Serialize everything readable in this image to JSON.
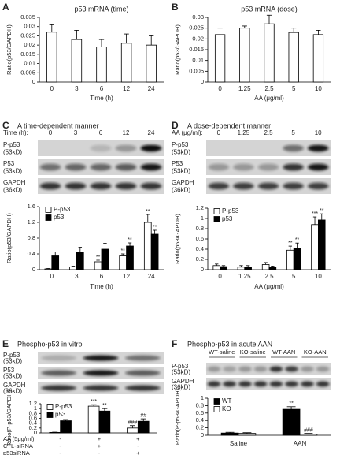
{
  "chart_data": [
    {
      "type": "bar",
      "panel": "A",
      "title": "p53 mRNA (time)",
      "xlabel": "Time (h)",
      "ylabel": "Ratio(p53/GAPDH)",
      "categories": [
        "0",
        "3",
        "6",
        "12",
        "24"
      ],
      "ylim": [
        0,
        0.035
      ],
      "yticks": [
        0,
        0.005,
        0.01,
        0.015,
        0.02,
        0.025,
        0.03,
        0.035
      ],
      "series": [
        {
          "color": "#ffffff",
          "values": [
            0.027,
            0.023,
            0.019,
            0.021,
            0.02
          ],
          "errors": [
            0.004,
            0.005,
            0.004,
            0.005,
            0.005
          ]
        }
      ]
    },
    {
      "type": "bar",
      "panel": "B",
      "title": "p53 mRNA (dose)",
      "xlabel": "AA (μg/ml)",
      "ylabel": "Ratio(p53/GAPDH)",
      "categories": [
        "0",
        "1.25",
        "2.5",
        "5",
        "10"
      ],
      "ylim": [
        0,
        0.03
      ],
      "yticks": [
        0,
        0.005,
        0.01,
        0.015,
        0.02,
        0.025,
        0.03
      ],
      "series": [
        {
          "color": "#ffffff",
          "values": [
            0.022,
            0.025,
            0.027,
            0.023,
            0.022
          ],
          "errors": [
            0.003,
            0.001,
            0.004,
            0.002,
            0.002
          ]
        }
      ]
    },
    {
      "type": "bar",
      "panel": "C",
      "title": "A time-dependent manner",
      "xlabel": "Time (h)",
      "ylabel": "Ratio(p53/GAPDH)",
      "blot": {
        "lane_label": "Time (h):",
        "lanes": [
          "0",
          "3",
          "6",
          "12",
          "24"
        ],
        "rows": [
          {
            "name": "P-p53",
            "size": "(53kD)"
          },
          {
            "name": "P53",
            "size": "(53kD)"
          },
          {
            "name": "GAPDH",
            "size": "(36kD)"
          }
        ]
      },
      "categories": [
        "0",
        "3",
        "6",
        "12",
        "24"
      ],
      "ylim": [
        0,
        1.6
      ],
      "yticks": [
        0,
        0.4,
        0.8,
        1.2,
        1.6
      ],
      "series": [
        {
          "name": "P-p53",
          "color": "#ffffff",
          "values": [
            0.02,
            0.07,
            0.2,
            0.35,
            1.2
          ],
          "errors": [
            0.01,
            0.02,
            0.04,
            0.05,
            0.2
          ],
          "labels": [
            null,
            null,
            "**",
            "**",
            "**"
          ]
        },
        {
          "name": "p53",
          "color": "#000000",
          "values": [
            0.35,
            0.45,
            0.52,
            0.6,
            0.9
          ],
          "errors": [
            0.1,
            0.12,
            0.15,
            0.08,
            0.1
          ],
          "labels": [
            null,
            null,
            null,
            "**",
            "**"
          ]
        }
      ]
    },
    {
      "type": "bar",
      "panel": "D",
      "title": "A dose-dependent manner",
      "xlabel": "AA (μg/ml)",
      "ylabel": "Ratio(p53/GAPDH)",
      "blot": {
        "lane_label": "AA (μg/ml):",
        "lanes": [
          "0",
          "1.25",
          "2.5",
          "5",
          "10"
        ],
        "rows": [
          {
            "name": "P-p53",
            "size": "(53kD)"
          },
          {
            "name": "P53",
            "size": "(53kD)"
          },
          {
            "name": "GAPDH",
            "size": "(36kD)"
          }
        ]
      },
      "categories": [
        "0",
        "1.25",
        "2.5",
        "5",
        "10"
      ],
      "ylim": [
        0,
        1.2
      ],
      "yticks": [
        0,
        0.2,
        0.4,
        0.6,
        0.8,
        1,
        1.2
      ],
      "series": [
        {
          "name": "P-p53",
          "color": "#ffffff",
          "values": [
            0.08,
            0.05,
            0.1,
            0.38,
            0.88
          ],
          "errors": [
            0.03,
            0.03,
            0.04,
            0.08,
            0.15
          ],
          "labels": [
            null,
            null,
            null,
            "**",
            "***"
          ]
        },
        {
          "name": "p53",
          "color": "#000000",
          "values": [
            0.06,
            0.05,
            0.05,
            0.42,
            0.97
          ],
          "errors": [
            0.02,
            0.03,
            0.02,
            0.1,
            0.12
          ],
          "labels": [
            null,
            null,
            null,
            "**",
            "**"
          ]
        }
      ]
    },
    {
      "type": "bar",
      "panel": "E",
      "title": "Phospho-p53  in vitro",
      "ylabel": "Ratio(P-p53/GAPDH)",
      "blot": {
        "rows": [
          {
            "name": "P-p53",
            "size": "(53kD)"
          },
          {
            "name": "P53",
            "size": "(53kD)"
          },
          {
            "name": "GAPDH",
            "size": "(36kD)"
          }
        ]
      },
      "conditions": [
        {
          "name": "AA (5μg/ml)",
          "marks": [
            "-",
            "+",
            "+"
          ]
        },
        {
          "name": "CTL-siRNA",
          "marks": [
            "-",
            "+",
            "-"
          ]
        },
        {
          "name": "p53siRNA",
          "marks": [
            "-",
            "-",
            "+"
          ]
        }
      ],
      "ylim": [
        0,
        1.2
      ],
      "yticks": [
        0,
        0.2,
        0.4,
        0.6,
        0.8,
        1,
        1.2
      ],
      "series": [
        {
          "name": "P-p53",
          "color": "#ffffff",
          "values": [
            0.02,
            1.1,
            0.2
          ],
          "errors": [
            0.01,
            0.06,
            0.1
          ],
          "labels": [
            null,
            "***",
            "###"
          ]
        },
        {
          "name": "p53",
          "color": "#000000",
          "values": [
            0.5,
            0.9,
            0.48
          ],
          "errors": [
            0.05,
            0.1,
            0.1
          ],
          "labels": [
            null,
            "**",
            "##"
          ]
        }
      ]
    },
    {
      "type": "bar",
      "panel": "F",
      "title": "Phospho-p53  in acute AAN",
      "ylabel": "Ratio(P-p53/GAPDH)",
      "blot": {
        "lane_groups": [
          "WT-saline",
          "KO-saline",
          "WT-AAN",
          "KO-AAN"
        ],
        "rows": [
          {
            "name": "P-p53",
            "size": "(53kD)"
          },
          {
            "name": "GAPDH",
            "size": "(36kD)"
          }
        ]
      },
      "categories": [
        "Saline",
        "AAN"
      ],
      "ylim": [
        0,
        1
      ],
      "yticks": [
        0,
        0.2,
        0.4,
        0.6,
        0.8,
        1
      ],
      "series": [
        {
          "name": "WT",
          "color": "#000000",
          "values": [
            0.06,
            0.7
          ],
          "errors": [
            0.02,
            0.07
          ],
          "labels": [
            null,
            "**"
          ]
        },
        {
          "name": "KO",
          "color": "#ffffff",
          "values": [
            0.05,
            0.03
          ],
          "errors": [
            0.02,
            0.02
          ],
          "labels": [
            null,
            "###"
          ]
        }
      ]
    }
  ]
}
